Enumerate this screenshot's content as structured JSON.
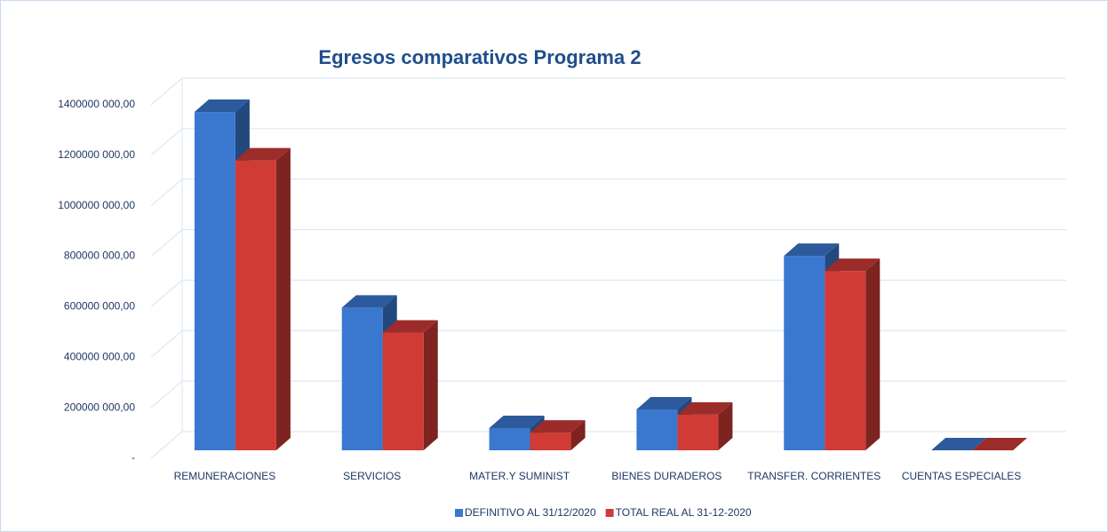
{
  "chart_data": {
    "type": "bar3d",
    "title": "Egresos comparativos Programa 2",
    "categories": [
      "REMUNERACIONES",
      "SERVICIOS",
      "MATER.Y SUMINIST",
      "BIENES DURADEROS",
      "TRANSFER. CORRIENTES",
      "CUENTAS ESPECIALES"
    ],
    "series": [
      {
        "name": "DEFINITIVO AL 31/12/2020",
        "color": "#3a78d0",
        "values": [
          1340000000,
          565000000,
          88000000,
          162000000,
          770000000,
          0
        ]
      },
      {
        "name": "TOTAL REAL AL 31-12-2020",
        "color": "#d03b36",
        "values": [
          1148000000,
          466000000,
          70000000,
          141000000,
          710000000,
          0
        ]
      }
    ],
    "ylim": [
      0,
      1400000000
    ],
    "yticks": [
      {
        "value": 0,
        "label": "-"
      },
      {
        "value": 200000000,
        "label": "200000 000,00"
      },
      {
        "value": 400000000,
        "label": "400000 000,00"
      },
      {
        "value": 600000000,
        "label": "600000 000,00"
      },
      {
        "value": 800000000,
        "label": "800000 000,00"
      },
      {
        "value": 1000000000,
        "label": "1000000 000,00"
      },
      {
        "value": 1200000000,
        "label": "1200000 000,00"
      },
      {
        "value": 1400000000,
        "label": "1400000 000,00"
      }
    ],
    "grid": true,
    "legend": "bottom"
  }
}
